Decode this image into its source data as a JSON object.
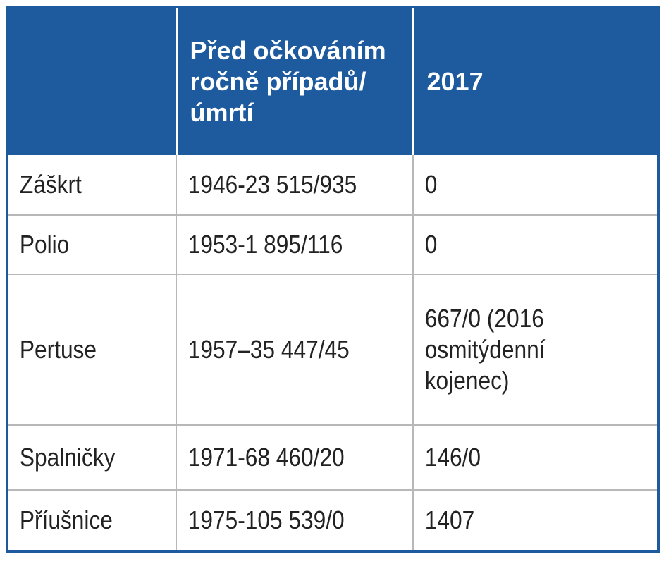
{
  "table": {
    "headers": [
      "",
      "Před očkováním ročně případů/úmrtí",
      "2017"
    ],
    "rows": [
      {
        "disease": "Záškrt",
        "before": "1946-23 515/935",
        "year2017": "0"
      },
      {
        "disease": "Polio",
        "before": "1953-1 895/116",
        "year2017": "0"
      },
      {
        "disease": "Pertuse",
        "before": "1957–35 447/45",
        "year2017": "667/0 (2016 osmitýdenní kojenec)"
      },
      {
        "disease": "Spalničky",
        "before": "1971-68 460/20",
        "year2017": "146/0"
      },
      {
        "disease": "Příušnice",
        "before": "1975-105 539/0",
        "year2017": "1407"
      }
    ]
  },
  "colors": {
    "header_bg": "#1d5a9e",
    "header_text": "#ffffff",
    "grid": "#b8b8b8"
  }
}
